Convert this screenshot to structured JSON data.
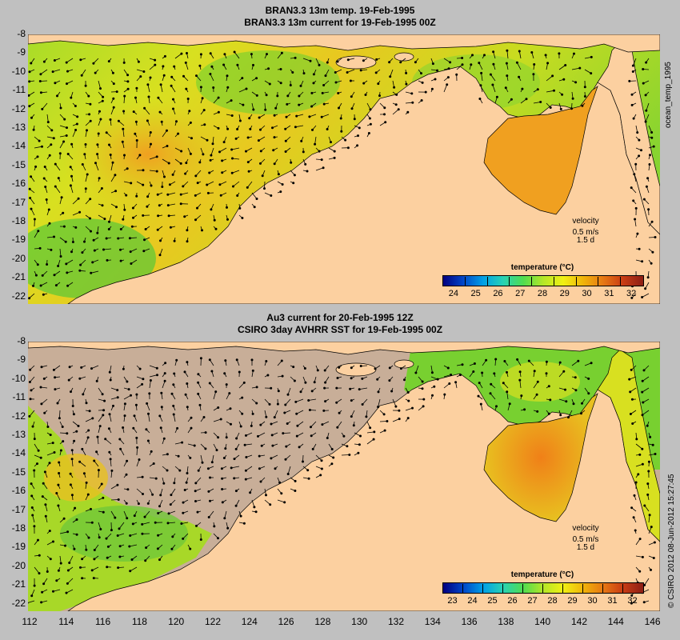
{
  "panels": [
    {
      "title_line1": "BRAN3.3 13m temp. 19-Feb-1995",
      "title_line2": "BRAN3.3 13m current for 19-Feb-1995 00Z",
      "side_label": "ocean_temp_1995",
      "velocity": {
        "label": "velocity",
        "speed": "0.5 m/s",
        "duration": "1.5 d"
      },
      "colorbar": {
        "title": "temperature (°C)",
        "ticks": [
          "24",
          "25",
          "26",
          "27",
          "28",
          "29",
          "30",
          "31",
          "32"
        ]
      }
    },
    {
      "title_line1": "Au3 current for 20-Feb-1995 12Z",
      "title_line2": "CSIRO 3day AVHRR SST for 19-Feb-1995 00Z",
      "side_label": "© CSIRO 2012  08-Jun-2012 15:27:45",
      "velocity": {
        "label": "velocity",
        "speed": "0.5 m/s",
        "duration": "1.5 d"
      },
      "colorbar": {
        "title": "temperature (°C)",
        "ticks": [
          "23",
          "24",
          "25",
          "26",
          "27",
          "28",
          "29",
          "30",
          "31",
          "32"
        ]
      }
    }
  ],
  "y_ticks": [
    "-8",
    "-9",
    "-10",
    "-11",
    "-12",
    "-13",
    "-14",
    "-15",
    "-16",
    "-17",
    "-18",
    "-19",
    "-20",
    "-21",
    "-22"
  ],
  "x_ticks": [
    "112",
    "114",
    "116",
    "118",
    "120",
    "122",
    "124",
    "126",
    "128",
    "130",
    "132",
    "134",
    "136",
    "138",
    "140",
    "142",
    "144",
    "146"
  ],
  "colors": {
    "land": "#fcd0a0",
    "background": "#c0c0c0",
    "no_data": "#c8ae98",
    "ocean_green": "#7cd43c",
    "ocean_yellow": "#d8e020",
    "ocean_orange": "#f0a020"
  }
}
